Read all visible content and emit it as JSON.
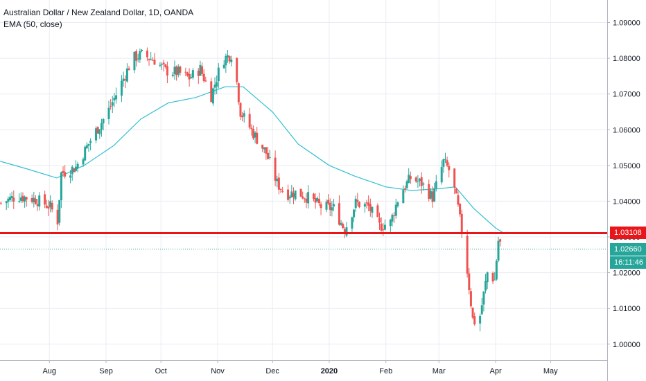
{
  "legend": {
    "title": "Australian Dollar / New Zealand Dollar, 1D, OANDA",
    "indicator": "EMA (50, close)"
  },
  "badges": {
    "hline_price": "1.03108",
    "last_price": "1.02660",
    "countdown": "16:11:46"
  },
  "colors": {
    "up": "#26a69a",
    "down": "#ef5350",
    "ema": "#33bfd1",
    "hline": "#e8161a",
    "last_line": "#26a69a",
    "grid": "#e9ecf2"
  },
  "chart_data": {
    "type": "candlestick",
    "title": "Australian Dollar / New Zealand Dollar, 1D, OANDA",
    "y_tick_labels": [
      "1.00000",
      "1.01000",
      "1.02000",
      "1.03000",
      "1.04000",
      "1.05000",
      "1.06000",
      "1.07000",
      "1.08000",
      "1.09000"
    ],
    "y_ticks": [
      1.0,
      1.01,
      1.02,
      1.03,
      1.04,
      1.05,
      1.06,
      1.07,
      1.08,
      1.09
    ],
    "ylim": [
      0.9955,
      1.0963
    ],
    "x_tick_labels": [
      "Aug",
      "Sep",
      "Oct",
      "Nov",
      "Dec",
      "2020",
      "Feb",
      "Mar",
      "Apr",
      "May"
    ],
    "x_tick_dates": [
      "2019-08-01",
      "2019-09-01",
      "2019-10-01",
      "2019-11-01",
      "2019-12-01",
      "2020-01-01",
      "2020-02-01",
      "2020-03-01",
      "2020-04-01",
      "2020-05-01"
    ],
    "xlim": [
      "2019-07-05",
      "2020-06-01"
    ],
    "horizontal_line": 1.03108,
    "last_price": 1.0266,
    "price_path": [
      [
        "2019-07-05",
        1.0395
      ],
      [
        "2019-07-14",
        1.0415
      ],
      [
        "2019-07-24",
        1.0405
      ],
      [
        "2019-08-01",
        1.0385
      ],
      [
        "2019-08-05",
        1.0345
      ],
      [
        "2019-08-07",
        1.0478
      ],
      [
        "2019-08-15",
        1.0495
      ],
      [
        "2019-08-24",
        1.058
      ],
      [
        "2019-09-01",
        1.0645
      ],
      [
        "2019-09-08",
        1.072
      ],
      [
        "2019-09-15",
        1.08
      ],
      [
        "2019-09-20",
        1.081
      ],
      [
        "2019-09-27",
        1.0795
      ],
      [
        "2019-10-03",
        1.0765
      ],
      [
        "2019-10-10",
        1.076
      ],
      [
        "2019-10-16",
        1.0745
      ],
      [
        "2019-10-22",
        1.077
      ],
      [
        "2019-10-28",
        1.0695
      ],
      [
        "2019-11-03",
        1.0795
      ],
      [
        "2019-11-09",
        1.0815
      ],
      [
        "2019-11-13",
        1.065
      ],
      [
        "2019-11-20",
        1.059
      ],
      [
        "2019-11-27",
        1.0535
      ],
      [
        "2019-12-03",
        1.045
      ],
      [
        "2019-12-08",
        1.042
      ],
      [
        "2019-12-14",
        1.0425
      ],
      [
        "2019-12-20",
        1.041
      ],
      [
        "2019-12-27",
        1.0385
      ],
      [
        "2020-01-03",
        1.038
      ],
      [
        "2020-01-09",
        1.032
      ],
      [
        "2020-01-15",
        1.0395
      ],
      [
        "2020-01-22",
        1.0385
      ],
      [
        "2020-01-28",
        1.033
      ],
      [
        "2020-02-03",
        1.034
      ],
      [
        "2020-02-08",
        1.042
      ],
      [
        "2020-02-14",
        1.0465
      ],
      [
        "2020-02-20",
        1.045
      ],
      [
        "2020-02-26",
        1.041
      ],
      [
        "2020-03-03",
        1.051
      ],
      [
        "2020-03-07",
        1.048
      ],
      [
        "2020-03-11",
        1.038
      ],
      [
        "2020-03-15",
        1.025
      ],
      [
        "2020-03-19",
        1.007
      ],
      [
        "2020-03-22",
        1.005
      ],
      [
        "2020-03-27",
        1.02
      ],
      [
        "2020-03-31",
        1.018
      ],
      [
        "2020-04-02",
        1.029
      ],
      [
        "2020-04-05",
        1.0266
      ]
    ],
    "ema_path": [
      [
        "2019-07-05",
        1.0512
      ],
      [
        "2019-07-20",
        1.049
      ],
      [
        "2019-08-05",
        1.0465
      ],
      [
        "2019-08-20",
        1.05
      ],
      [
        "2019-09-05",
        1.0555
      ],
      [
        "2019-09-20",
        1.063
      ],
      [
        "2019-10-05",
        1.0675
      ],
      [
        "2019-10-20",
        1.069
      ],
      [
        "2019-11-05",
        1.072
      ],
      [
        "2019-11-15",
        1.072
      ],
      [
        "2019-12-01",
        1.065
      ],
      [
        "2019-12-15",
        1.056
      ],
      [
        "2020-01-01",
        1.05
      ],
      [
        "2020-01-15",
        1.047
      ],
      [
        "2020-02-01",
        1.044
      ],
      [
        "2020-02-15",
        1.043
      ],
      [
        "2020-03-01",
        1.0435
      ],
      [
        "2020-03-10",
        1.044
      ],
      [
        "2020-03-20",
        1.038
      ],
      [
        "2020-04-01",
        1.0325
      ],
      [
        "2020-04-05",
        1.0312
      ]
    ],
    "grid": true,
    "legend": "top-left"
  }
}
